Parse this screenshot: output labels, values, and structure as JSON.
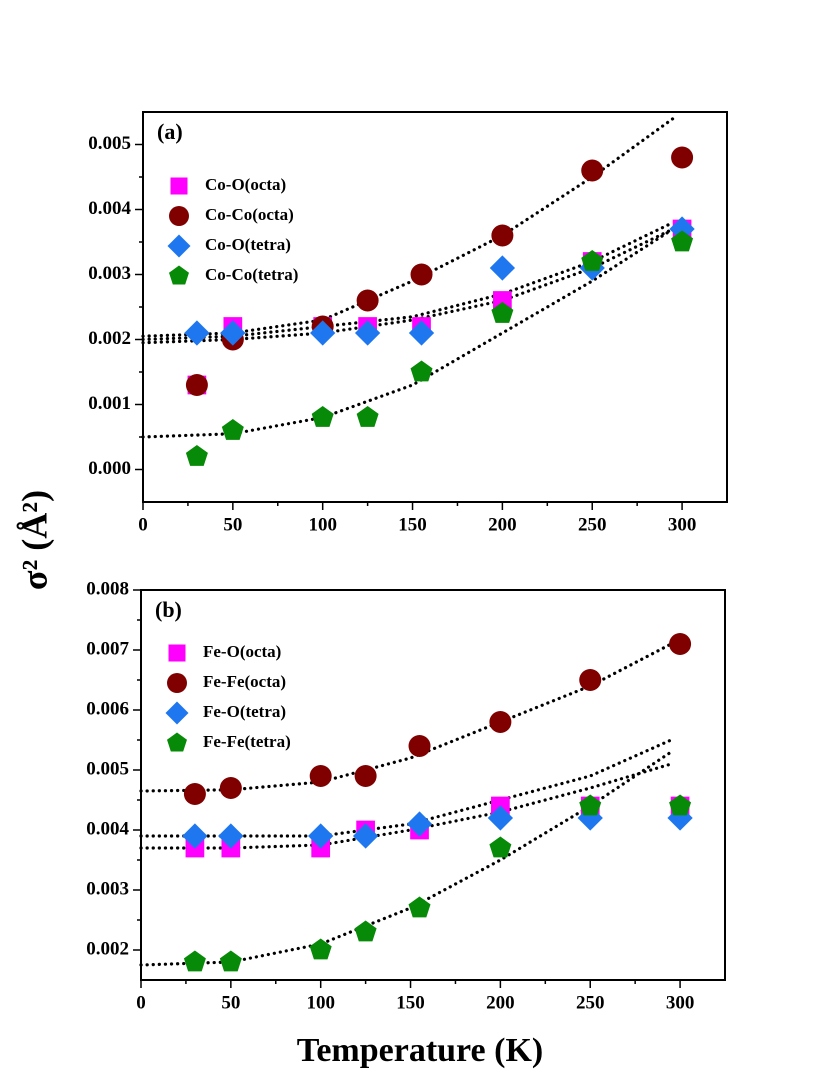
{
  "ylabel": "σ² (Å²)",
  "xlabel": "Temperature (K)",
  "chart_data": [
    {
      "type": "scatter",
      "annotation": "(a)",
      "legend": "upper left",
      "x": [
        30,
        50,
        100,
        125,
        155,
        200,
        250,
        300
      ],
      "xlim": [
        0,
        325
      ],
      "xticks": [
        0,
        50,
        100,
        150,
        200,
        250,
        300
      ],
      "ylim": [
        -0.0005,
        0.0055
      ],
      "yticks": [
        {
          "value": 0,
          "label": "0.000"
        },
        {
          "value": 0.001,
          "label": "0.001"
        },
        {
          "value": 0.002,
          "label": "0.002"
        },
        {
          "value": 0.003,
          "label": "0.003"
        },
        {
          "value": 0.004,
          "label": "0.004"
        },
        {
          "value": 0.005,
          "label": "0.005"
        }
      ],
      "series": [
        {
          "name": "Co-O(octa)",
          "color": "#ff00ff",
          "marker": "square",
          "values": [
            0.0013,
            0.0022,
            0.0022,
            0.0022,
            0.0022,
            0.0026,
            0.0032,
            0.0037
          ]
        },
        {
          "name": "Co-Co(octa)",
          "color": "#800000",
          "marker": "circle",
          "values": [
            0.0013,
            0.002,
            0.0022,
            0.0026,
            0.003,
            0.0036,
            0.0046,
            0.0048
          ]
        },
        {
          "name": "Co-O(tetra)",
          "color": "#1f77f0",
          "marker": "diamond",
          "values": [
            0.0021,
            0.0021,
            0.0021,
            0.0021,
            0.0021,
            0.0031,
            0.0031,
            0.0037
          ]
        },
        {
          "name": "Co-Co(tetra)",
          "color": "#078a07",
          "marker": "pentagon",
          "values": [
            0.0002,
            0.0006,
            0.0008,
            0.0008,
            0.0015,
            0.0024,
            0.0032,
            0.0035
          ]
        }
      ],
      "fits": [
        {
          "color": "#000000",
          "x": [
            0,
            50,
            100,
            150,
            200,
            250,
            295
          ],
          "values": [
            0.00205,
            0.0021,
            0.0023,
            0.0029,
            0.0036,
            0.0045,
            0.0054
          ]
        },
        {
          "color": "#000000",
          "x": [
            0,
            50,
            100,
            150,
            200,
            250,
            295
          ],
          "values": [
            0.00195,
            0.002,
            0.0021,
            0.0023,
            0.0026,
            0.0031,
            0.0037
          ]
        },
        {
          "color": "#000000",
          "x": [
            0,
            50,
            100,
            150,
            200,
            250,
            295
          ],
          "values": [
            0.002,
            0.00205,
            0.0022,
            0.00235,
            0.0027,
            0.0032,
            0.0038
          ]
        },
        {
          "color": "#000000",
          "x": [
            0,
            50,
            100,
            150,
            200,
            250,
            295
          ],
          "values": [
            0.0005,
            0.00055,
            0.0008,
            0.0013,
            0.0021,
            0.0029,
            0.0037
          ]
        }
      ]
    },
    {
      "type": "scatter",
      "annotation": "(b)",
      "legend": "upper left",
      "x": [
        30,
        50,
        100,
        125,
        155,
        200,
        250,
        300
      ],
      "xlim": [
        0,
        325
      ],
      "xticks": [
        0,
        50,
        100,
        150,
        200,
        250,
        300
      ],
      "ylim": [
        0.0015,
        0.008
      ],
      "yticks": [
        {
          "value": 0.002,
          "label": "0.002"
        },
        {
          "value": 0.003,
          "label": "0.003"
        },
        {
          "value": 0.004,
          "label": "0.004"
        },
        {
          "value": 0.005,
          "label": "0.005"
        },
        {
          "value": 0.006,
          "label": "0.006"
        },
        {
          "value": 0.007,
          "label": "0.007"
        },
        {
          "value": 0.008,
          "label": "0.008"
        }
      ],
      "series": [
        {
          "name": "Fe-O(octa)",
          "color": "#ff00ff",
          "marker": "square",
          "values": [
            0.0037,
            0.0037,
            0.0037,
            0.004,
            0.004,
            0.0044,
            0.0044,
            0.0044
          ]
        },
        {
          "name": "Fe-Fe(octa)",
          "color": "#800000",
          "marker": "circle",
          "values": [
            0.0046,
            0.0047,
            0.0049,
            0.0049,
            0.0054,
            0.0058,
            0.0065,
            0.0071
          ]
        },
        {
          "name": "Fe-O(tetra)",
          "color": "#1f77f0",
          "marker": "diamond",
          "values": [
            0.0039,
            0.0039,
            0.0039,
            0.0039,
            0.0041,
            0.0042,
            0.0042,
            0.0042
          ]
        },
        {
          "name": "Fe-Fe(tetra)",
          "color": "#078a07",
          "marker": "pentagon",
          "values": [
            0.0018,
            0.0018,
            0.002,
            0.0023,
            0.0027,
            0.0037,
            0.0044,
            0.0044
          ]
        }
      ],
      "fits": [
        {
          "color": "#000000",
          "x": [
            0,
            50,
            100,
            150,
            200,
            250,
            295
          ],
          "values": [
            0.00465,
            0.00467,
            0.0048,
            0.0052,
            0.0058,
            0.0064,
            0.0071
          ]
        },
        {
          "color": "#000000",
          "x": [
            0,
            50,
            100,
            150,
            200,
            250,
            295
          ],
          "values": [
            0.0037,
            0.0037,
            0.00375,
            0.004,
            0.0043,
            0.0047,
            0.0051
          ]
        },
        {
          "color": "#000000",
          "x": [
            0,
            50,
            100,
            150,
            200,
            250,
            295
          ],
          "values": [
            0.0039,
            0.0039,
            0.0039,
            0.0041,
            0.0045,
            0.0049,
            0.0055
          ]
        },
        {
          "color": "#000000",
          "x": [
            0,
            50,
            100,
            150,
            200,
            250,
            295
          ],
          "values": [
            0.00175,
            0.0018,
            0.0021,
            0.0027,
            0.0035,
            0.0044,
            0.0053
          ]
        }
      ]
    }
  ]
}
